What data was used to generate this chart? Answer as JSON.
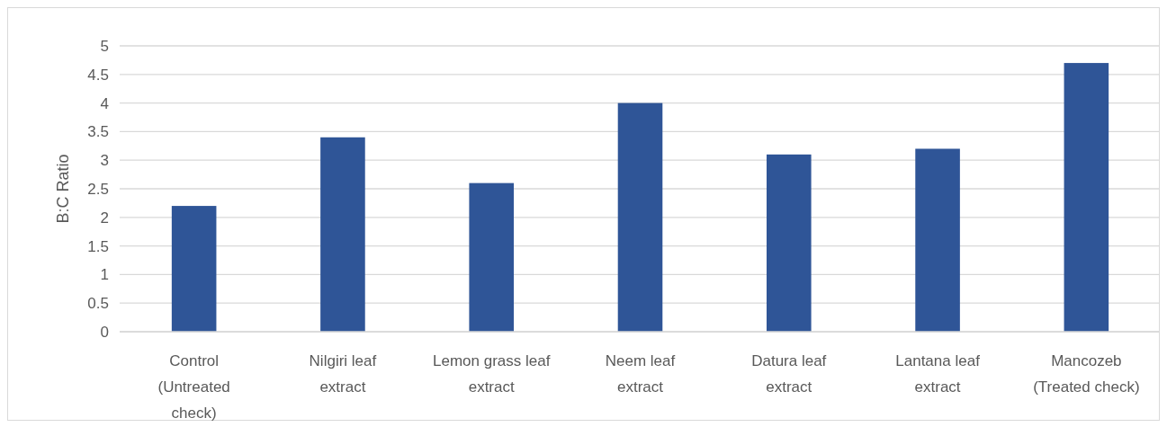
{
  "chart_data": {
    "type": "bar",
    "ylabel": "B:C Ratio",
    "categories": [
      "Control (Untreated check)",
      "Nilgiri leaf extract",
      "Lemon grass leaf extract",
      "Neem leaf extract",
      "Datura leaf extract",
      "Lantana leaf extract",
      "Mancozeb (Treated check)"
    ],
    "values": [
      2.2,
      3.4,
      2.6,
      4.0,
      3.1,
      3.2,
      4.7
    ],
    "color": "#2f5597",
    "ylim": [
      0,
      5
    ],
    "yticks": [
      0,
      0.5,
      1,
      1.5,
      2,
      2.5,
      3,
      3.5,
      4,
      4.5,
      5
    ],
    "grid": "y"
  }
}
